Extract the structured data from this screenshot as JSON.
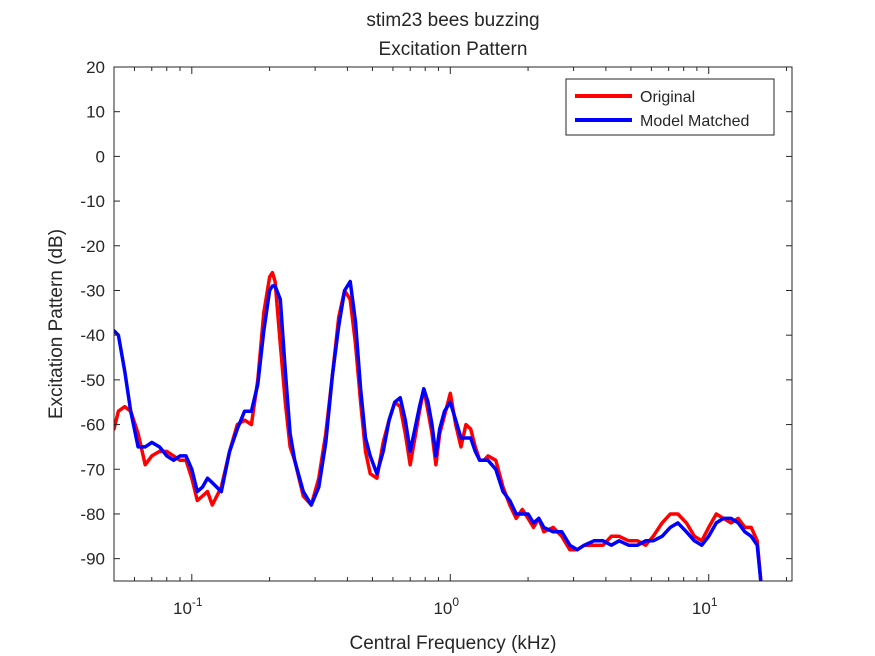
{
  "chart_data": {
    "type": "line",
    "title": "stim23 bees buzzing",
    "subtitle": "Excitation Pattern",
    "xlabel": "Central Frequency (kHz)",
    "ylabel": "Excitation Pattern (dB)",
    "xscale": "log",
    "xlim": [
      0.05,
      21
    ],
    "ylim": [
      -95,
      20
    ],
    "yticks": [
      20,
      10,
      0,
      -10,
      -20,
      -30,
      -40,
      -50,
      -60,
      -70,
      -80,
      -90
    ],
    "ytick_labels": [
      "20",
      "10",
      "0",
      "-10",
      "-20",
      "-30",
      "-40",
      "-50",
      "-60",
      "-70",
      "-80",
      "-90"
    ],
    "xticks": [
      0.1,
      1,
      10
    ],
    "xtick_labels": [
      {
        "base": "10",
        "exp": "-1"
      },
      {
        "base": "10",
        "exp": "0"
      },
      {
        "base": "10",
        "exp": "1"
      }
    ],
    "grid": false,
    "legend_position": "top-right",
    "series": [
      {
        "name": "Original",
        "color": "#ff0000",
        "x": [
          0.05,
          0.052,
          0.055,
          0.058,
          0.062,
          0.066,
          0.07,
          0.075,
          0.08,
          0.085,
          0.09,
          0.095,
          0.1,
          0.105,
          0.11,
          0.115,
          0.12,
          0.13,
          0.14,
          0.15,
          0.16,
          0.17,
          0.18,
          0.19,
          0.2,
          0.205,
          0.21,
          0.22,
          0.23,
          0.24,
          0.25,
          0.27,
          0.29,
          0.31,
          0.33,
          0.35,
          0.37,
          0.39,
          0.41,
          0.43,
          0.45,
          0.47,
          0.49,
          0.52,
          0.55,
          0.58,
          0.61,
          0.64,
          0.67,
          0.7,
          0.73,
          0.76,
          0.79,
          0.82,
          0.85,
          0.88,
          0.91,
          0.95,
          1.0,
          1.05,
          1.1,
          1.15,
          1.2,
          1.25,
          1.3,
          1.35,
          1.4,
          1.5,
          1.6,
          1.7,
          1.8,
          1.9,
          2.0,
          2.1,
          2.2,
          2.3,
          2.5,
          2.7,
          2.9,
          3.1,
          3.3,
          3.6,
          3.9,
          4.2,
          4.5,
          4.9,
          5.3,
          5.7,
          6.1,
          6.6,
          7.1,
          7.6,
          8.2,
          8.8,
          9.4,
          10.0,
          10.7,
          11.4,
          12.2,
          13.0,
          13.8,
          14.6,
          15.4,
          15.9
        ],
        "y": [
          -61,
          -57,
          -56,
          -57,
          -62,
          -69,
          -67,
          -66,
          -66,
          -67,
          -68,
          -68,
          -72,
          -77,
          -76,
          -75,
          -78,
          -74,
          -66,
          -60,
          -59,
          -60,
          -50,
          -35,
          -27,
          -26,
          -28,
          -42,
          -55,
          -65,
          -68,
          -76,
          -78,
          -72,
          -62,
          -49,
          -36,
          -30,
          -32,
          -42,
          -55,
          -66,
          -71,
          -72,
          -64,
          -59,
          -55,
          -56,
          -62,
          -69,
          -63,
          -57,
          -52,
          -57,
          -62,
          -69,
          -62,
          -58,
          -53,
          -60,
          -65,
          -60,
          -61,
          -65,
          -68,
          -68,
          -67,
          -68,
          -74,
          -78,
          -81,
          -79,
          -81,
          -83,
          -81,
          -84,
          -83,
          -85,
          -88,
          -88,
          -87,
          -87,
          -87,
          -85,
          -85,
          -86,
          -86,
          -87,
          -85,
          -82,
          -80,
          -80,
          -82,
          -85,
          -86,
          -83,
          -80,
          -81,
          -82,
          -81,
          -83,
          -83,
          -86,
          -95
        ]
      },
      {
        "name": "Model Matched",
        "color": "#0000ff",
        "x": [
          0.05,
          0.052,
          0.055,
          0.058,
          0.062,
          0.066,
          0.07,
          0.075,
          0.08,
          0.085,
          0.09,
          0.095,
          0.1,
          0.105,
          0.11,
          0.115,
          0.12,
          0.13,
          0.14,
          0.15,
          0.16,
          0.17,
          0.18,
          0.19,
          0.2,
          0.205,
          0.21,
          0.22,
          0.23,
          0.24,
          0.25,
          0.27,
          0.29,
          0.31,
          0.33,
          0.35,
          0.37,
          0.39,
          0.41,
          0.43,
          0.45,
          0.47,
          0.49,
          0.52,
          0.55,
          0.58,
          0.61,
          0.64,
          0.67,
          0.7,
          0.73,
          0.76,
          0.79,
          0.82,
          0.85,
          0.88,
          0.91,
          0.95,
          1.0,
          1.05,
          1.1,
          1.15,
          1.2,
          1.25,
          1.3,
          1.35,
          1.4,
          1.5,
          1.6,
          1.7,
          1.8,
          1.9,
          2.0,
          2.1,
          2.2,
          2.3,
          2.5,
          2.7,
          2.9,
          3.1,
          3.3,
          3.6,
          3.9,
          4.2,
          4.5,
          4.9,
          5.3,
          5.7,
          6.1,
          6.6,
          7.1,
          7.6,
          8.2,
          8.8,
          9.4,
          10.0,
          10.7,
          11.4,
          12.2,
          13.0,
          13.8,
          14.6,
          15.4,
          15.9
        ],
        "y": [
          -39,
          -40,
          -48,
          -57,
          -65,
          -65,
          -64,
          -65,
          -67,
          -68,
          -67,
          -67,
          -70,
          -75,
          -74,
          -72,
          -73,
          -75,
          -66,
          -61,
          -57,
          -57,
          -51,
          -39,
          -30,
          -29,
          -29,
          -32,
          -48,
          -62,
          -68,
          -75,
          -78,
          -74,
          -64,
          -49,
          -38,
          -30,
          -28,
          -37,
          -52,
          -63,
          -67,
          -71,
          -66,
          -59,
          -55,
          -54,
          -59,
          -66,
          -61,
          -56,
          -52,
          -55,
          -60,
          -67,
          -61,
          -57,
          -55,
          -59,
          -63,
          -63,
          -63,
          -66,
          -68,
          -68,
          -68,
          -70,
          -75,
          -77,
          -80,
          -80,
          -80,
          -82,
          -81,
          -83,
          -84,
          -84,
          -87,
          -88,
          -87,
          -86,
          -86,
          -87,
          -86,
          -87,
          -87,
          -86,
          -86,
          -85,
          -83,
          -82,
          -84,
          -86,
          -87,
          -85,
          -82,
          -81,
          -81,
          -82,
          -84,
          -85,
          -87,
          -95
        ]
      }
    ]
  }
}
